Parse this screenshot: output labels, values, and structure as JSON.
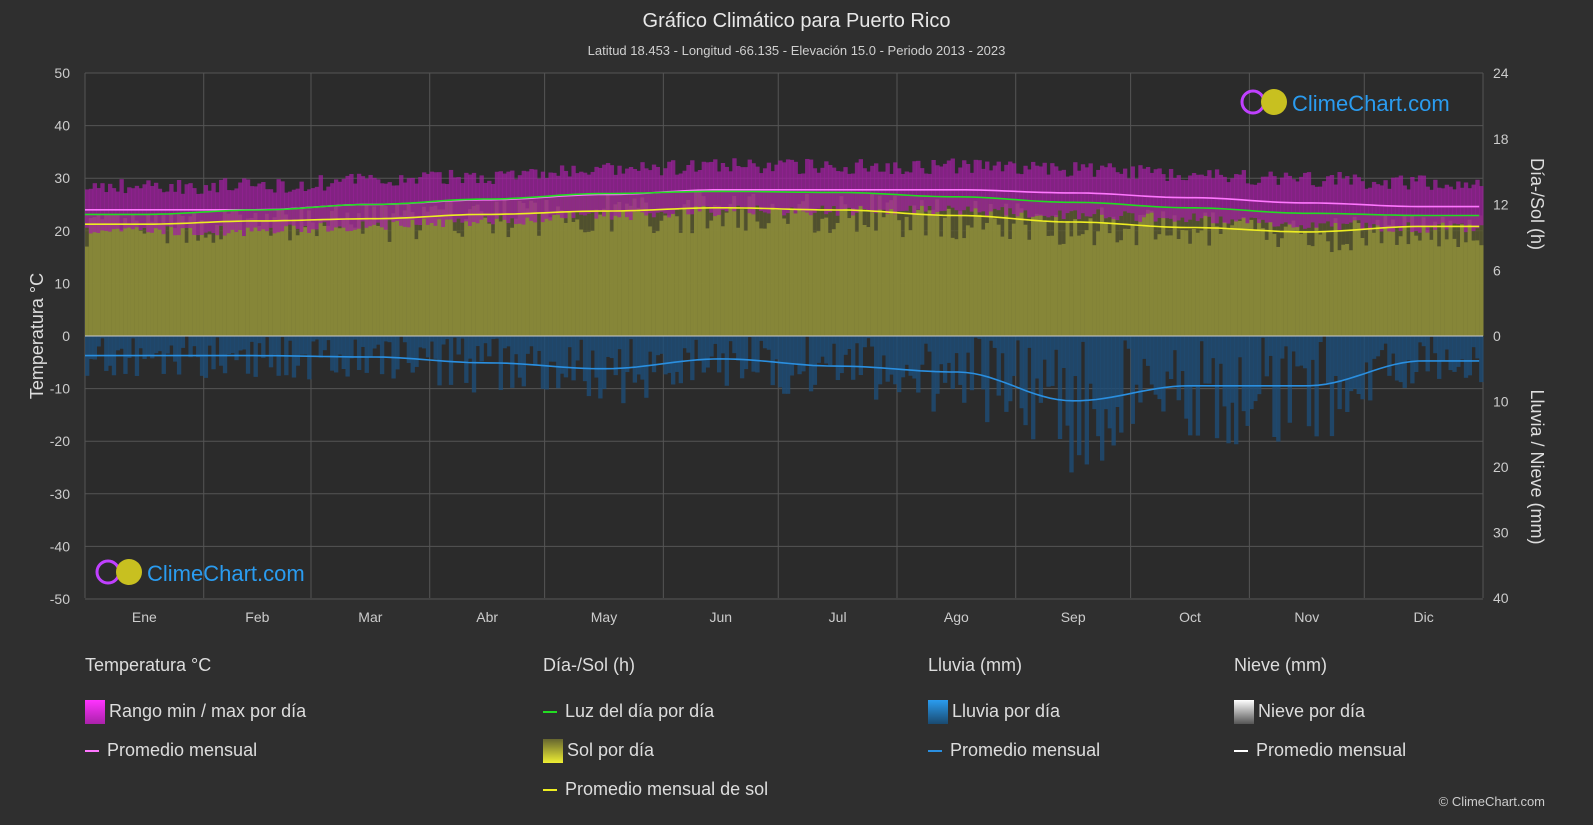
{
  "title": "Gráfico Climático para Puerto Rico",
  "subtitle": "Latitud 18.453 - Longitud -66.135 - Elevación 15.0 - Periodo 2013 - 2023",
  "logo_text": "ClimeChart.com",
  "copyright": "© ClimeChart.com",
  "chart_data": {
    "type": "line",
    "categories": [
      "Ene",
      "Feb",
      "Mar",
      "Abr",
      "May",
      "Jun",
      "Jul",
      "Ago",
      "Sep",
      "Oct",
      "Nov",
      "Dic"
    ],
    "ylabel_left": "Temperatura °C",
    "ylabel_right_top": "Día-/Sol (h)",
    "ylabel_right_bottom": "Lluvia / Nieve (mm)",
    "ylim_left": [
      -50,
      50
    ],
    "yticks_left": [
      50,
      40,
      30,
      20,
      10,
      0,
      -10,
      -20,
      -30,
      -40,
      -50
    ],
    "yticks_right_top": [
      24,
      18,
      12,
      6,
      0
    ],
    "yticks_right_bottom": [
      0,
      10,
      20,
      30,
      40
    ],
    "grid": true,
    "series": [
      {
        "name": "Promedio mensual",
        "unit": "°C",
        "color": "#ff77ff",
        "values": [
          24.0,
          24.0,
          25.0,
          25.9,
          26.9,
          27.8,
          27.8,
          27.8,
          27.2,
          26.3,
          25.3,
          24.6
        ]
      },
      {
        "name": "Luz del día por día",
        "unit": "h",
        "color": "#22dd22",
        "values": [
          11.1,
          11.5,
          12.0,
          12.5,
          13.0,
          13.2,
          13.1,
          12.7,
          12.2,
          11.7,
          11.2,
          11.0
        ]
      },
      {
        "name": "Promedio mensual de sol",
        "unit": "h",
        "color": "#eeee22",
        "values": [
          10.2,
          10.5,
          10.7,
          11.1,
          11.4,
          11.7,
          11.5,
          11.0,
          10.4,
          9.9,
          9.5,
          10.0
        ]
      },
      {
        "name": "Promedio mensual",
        "unit": "mm",
        "color": "#2a8fe0",
        "values": [
          3.0,
          3.0,
          3.2,
          4.1,
          5.0,
          3.5,
          4.6,
          5.5,
          9.9,
          7.6,
          7.6,
          3.8
        ]
      }
    ]
  },
  "legend": {
    "temp": {
      "header": "Temperatura °C",
      "items": [
        "Rango min / max por día",
        "Promedio mensual"
      ]
    },
    "sun": {
      "header": "Día-/Sol (h)",
      "items": [
        "Luz del día por día",
        "Sol por día",
        "Promedio mensual de sol"
      ]
    },
    "rain": {
      "header": "Lluvia (mm)",
      "items": [
        "Lluvia por día",
        "Promedio mensual"
      ]
    },
    "snow": {
      "header": "Nieve (mm)",
      "items": [
        "Nieve por día",
        "Promedio mensual"
      ]
    }
  }
}
